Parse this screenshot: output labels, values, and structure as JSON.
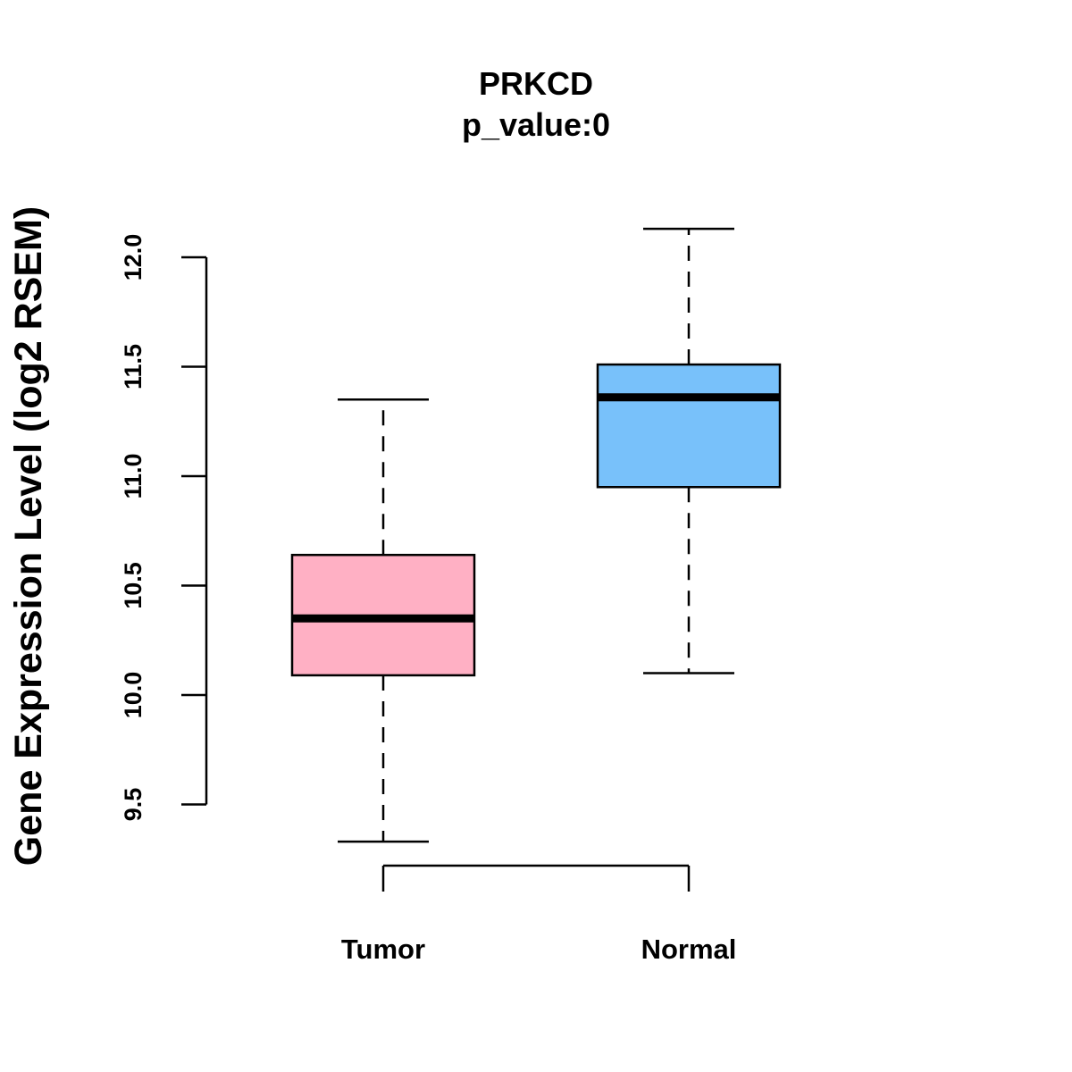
{
  "chart_data": {
    "type": "boxplot",
    "title": "PRKCD",
    "subtitle": "p_value:0",
    "ylabel": "Gene Expression Level (log2 RSEM)",
    "xlabel": "",
    "ylim": [
      9.5,
      12.0
    ],
    "yticks": [
      "9.5",
      "10.0",
      "10.5",
      "11.0",
      "11.5",
      "12.0"
    ],
    "grid": false,
    "categories": [
      "Tumor",
      "Normal"
    ],
    "boxes": [
      {
        "name": "Tumor",
        "min": 9.33,
        "q1": 10.09,
        "median": 10.35,
        "q3": 10.64,
        "max": 11.35,
        "color": "#FFB0C4"
      },
      {
        "name": "Normal",
        "min": 10.1,
        "q1": 10.95,
        "median": 11.36,
        "q3": 11.51,
        "max": 12.13,
        "color": "#78C1FA"
      }
    ]
  }
}
